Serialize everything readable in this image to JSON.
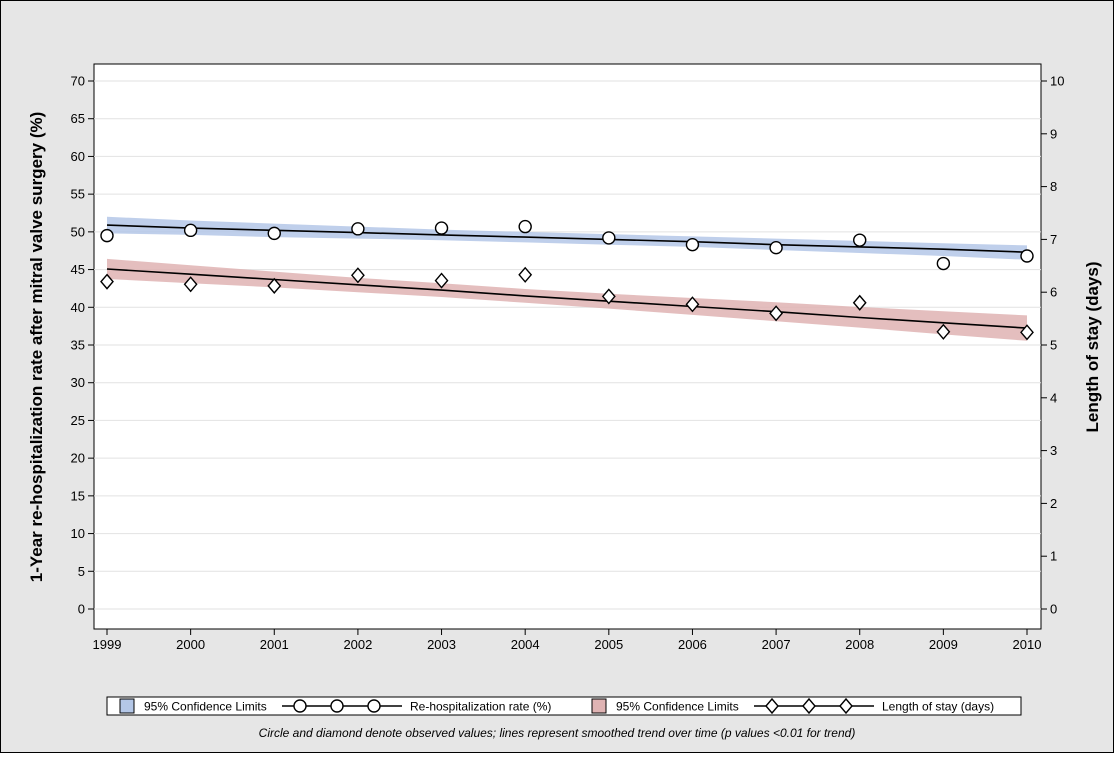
{
  "chart_data": {
    "type": "line",
    "x": [
      1999,
      2000,
      2001,
      2002,
      2003,
      2004,
      2005,
      2006,
      2007,
      2008,
      2009,
      2010
    ],
    "xlim": [
      1999,
      2010
    ],
    "y_left_label": "1-Year re-hospitalization rate after mitral valve surgery (%)",
    "y_left_ticks": [
      0,
      5,
      10,
      15,
      20,
      25,
      30,
      35,
      40,
      45,
      50,
      55,
      60,
      65,
      70
    ],
    "y_left_lim": [
      0,
      70
    ],
    "y_right_label": "Length of stay (days)",
    "y_right_ticks": [
      0,
      1,
      2,
      3,
      4,
      5,
      6,
      7,
      8,
      9,
      10
    ],
    "y_right_lim": [
      0,
      10
    ],
    "grid": "horizontal",
    "legend_position": "bottom",
    "series": [
      {
        "name": "Re-hospitalization rate (%)",
        "axis": "left",
        "marker": "circle",
        "observed": [
          49.5,
          50.2,
          49.8,
          50.4,
          50.5,
          50.7,
          49.2,
          48.3,
          47.9,
          48.9,
          45.8,
          46.8
        ],
        "trend": [
          50.9,
          50.5,
          50.2,
          49.9,
          49.6,
          49.3,
          49.0,
          48.7,
          48.3,
          48.0,
          47.7,
          47.3
        ],
        "ci_lower": [
          49.8,
          49.6,
          49.3,
          49.1,
          48.9,
          48.6,
          48.3,
          48.0,
          47.6,
          47.2,
          46.8,
          46.3
        ],
        "ci_upper": [
          52.0,
          51.5,
          51.1,
          50.7,
          50.3,
          50.0,
          49.7,
          49.4,
          49.1,
          48.8,
          48.5,
          48.2
        ],
        "ci_color": "#b4c7e7"
      },
      {
        "name": "Length of stay (days)",
        "axis": "right",
        "marker": "diamond",
        "observed": [
          6.2,
          6.15,
          6.12,
          6.32,
          6.22,
          6.33,
          5.92,
          5.77,
          5.6,
          5.8,
          5.25,
          5.24
        ],
        "trend": [
          6.44,
          6.34,
          6.24,
          6.14,
          6.04,
          5.93,
          5.83,
          5.73,
          5.63,
          5.52,
          5.42,
          5.32
        ],
        "ci_lower": [
          6.25,
          6.17,
          6.09,
          6.0,
          5.91,
          5.8,
          5.69,
          5.57,
          5.45,
          5.33,
          5.2,
          5.08
        ],
        "ci_upper": [
          6.63,
          6.51,
          6.39,
          6.27,
          6.17,
          6.06,
          5.97,
          5.89,
          5.81,
          5.72,
          5.64,
          5.56
        ],
        "ci_color": "#dfb3b3"
      }
    ],
    "legend": [
      {
        "kind": "band",
        "color": "#b4c7e7",
        "label": "95% Confidence Limits"
      },
      {
        "kind": "line-circle",
        "label": "Re-hospitalization rate (%)"
      },
      {
        "kind": "band",
        "color": "#dfb3b3",
        "label": "95% Confidence Limits"
      },
      {
        "kind": "line-diamond",
        "label": "Length of stay (days)"
      }
    ],
    "footnote": "Circle and diamond denote observed values; lines represent smoothed trend over time (p values <0.01 for trend)"
  }
}
